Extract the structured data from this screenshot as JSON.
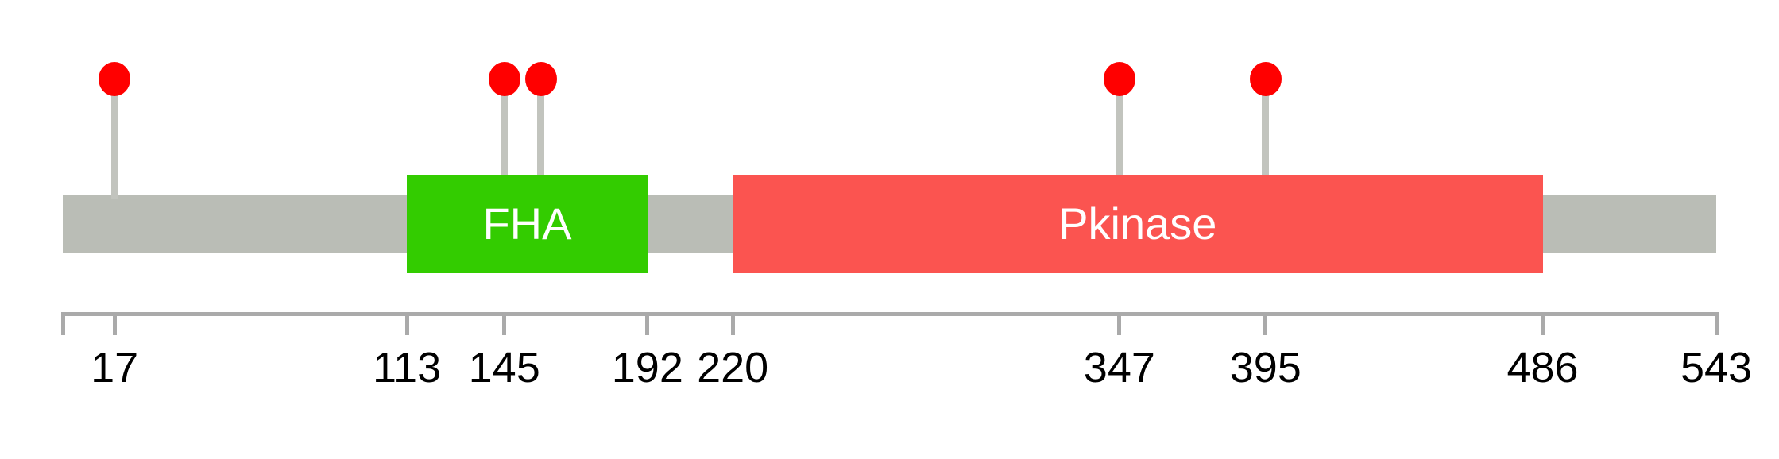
{
  "chart_data": {
    "type": "lollipop-protein-domain",
    "title": "",
    "protein_length": 543,
    "axis_range": [
      0,
      543
    ],
    "backbone_color": "#BABDB6",
    "stick_color": "#C2C4BE",
    "axis_color": "#AAAAAA",
    "label_color": "#000000",
    "domains": [
      {
        "label": "FHA",
        "start": 113,
        "end": 192,
        "color": "#33CC00",
        "text_color": "#FFFFFF"
      },
      {
        "label": "Pkinase",
        "start": 220,
        "end": 486,
        "color": "#FB5450",
        "text_color": "#FFFFFF"
      }
    ],
    "lollipops": [
      {
        "position": 17,
        "color": "#FF0000"
      },
      {
        "position": 145,
        "color": "#FF0000"
      },
      {
        "position": 157,
        "color": "#FF0000"
      },
      {
        "position": 347,
        "color": "#FF0000"
      },
      {
        "position": 395,
        "color": "#FF0000"
      }
    ],
    "axis_ticks": [
      {
        "position": 0,
        "label": ""
      },
      {
        "position": 17,
        "label": "17"
      },
      {
        "position": 113,
        "label": "113"
      },
      {
        "position": 145,
        "label": "145"
      },
      {
        "position": 192,
        "label": "192"
      },
      {
        "position": 220,
        "label": "220"
      },
      {
        "position": 347,
        "label": "347"
      },
      {
        "position": 395,
        "label": "395"
      },
      {
        "position": 486,
        "label": "486"
      },
      {
        "position": 543,
        "label": "543"
      }
    ]
  }
}
